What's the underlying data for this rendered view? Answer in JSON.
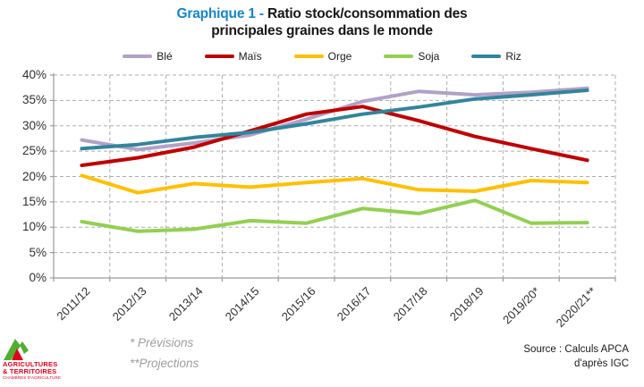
{
  "title": {
    "prefix": "Graphique 1 - ",
    "line1_rest": "Ratio stock/consommation des",
    "line2": "principales graines dans le monde",
    "prefix_color": "#1586c8"
  },
  "chart_data": {
    "type": "line",
    "categories": [
      "2011/12",
      "2012/13",
      "2013/14",
      "2014/15",
      "2015/16",
      "2016/17",
      "2017/18",
      "2018/19",
      "2019/20*",
      "2020/21**"
    ],
    "series": [
      {
        "name": "Blé",
        "color": "#b2a1c7",
        "values": [
          27.2,
          25.3,
          26.6,
          28.2,
          31.3,
          34.8,
          36.8,
          36.1,
          36.6,
          37.4
        ]
      },
      {
        "name": "Maïs",
        "color": "#c00000",
        "values": [
          22.2,
          23.7,
          25.8,
          29.0,
          32.3,
          33.8,
          31.0,
          27.9,
          25.5,
          23.2
        ]
      },
      {
        "name": "Orge",
        "color": "#ffc000",
        "values": [
          20.2,
          16.8,
          18.6,
          17.9,
          18.8,
          19.6,
          17.4,
          17.1,
          19.2,
          18.8
        ]
      },
      {
        "name": "Soja",
        "color": "#92d050",
        "values": [
          11.1,
          9.2,
          9.6,
          11.3,
          10.8,
          13.7,
          12.7,
          15.3,
          10.8,
          10.9
        ]
      },
      {
        "name": "Riz",
        "color": "#31859c",
        "values": [
          25.5,
          26.3,
          27.7,
          28.7,
          30.4,
          32.3,
          33.7,
          35.3,
          36.1,
          37.0
        ]
      }
    ],
    "ylim": [
      0,
      40
    ],
    "y_tick_step": 5,
    "y_tick_suffix": "%",
    "legend_position": "top",
    "grid": {
      "horizontal": true,
      "vertical": true,
      "style": "dashed"
    },
    "grid_color": "#adadad",
    "axis_color": "#9b9b9b"
  },
  "footnotes": {
    "line1": "* Prévisions",
    "line2": "**Projections"
  },
  "source": {
    "line1": "Source : Calculs APCA",
    "line2": "d'après IGC"
  },
  "logo": {
    "line1": "AGRICULTURES",
    "line2": "& TERRITOIRES",
    "line3": "CHAMBRES D'AGRICULTURE"
  }
}
